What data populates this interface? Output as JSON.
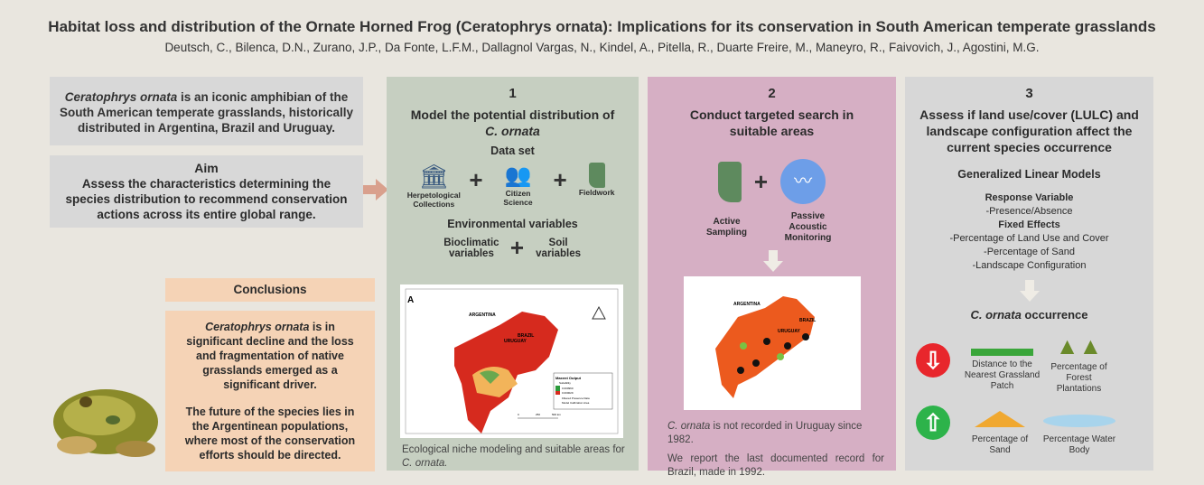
{
  "header": {
    "title": "Habitat loss and distribution of the Ornate Horned Frog (Ceratophrys ornata): Implications for its conservation in South American temperate grasslands",
    "authors": "Deutsch, C., Bilenca, D.N., Zurano, J.P., Da Fonte, L.F.M., Dallagnol Vargas, N., Kindel, A.,  Pitella, R., Duarte Freire, M., Maneyro, R., Faivovich, J., Agostini, M.G."
  },
  "intro": {
    "species": "Ceratophrys ornata",
    "text": " is an iconic amphibian of the South American temperate grasslands,  historically distributed in Argentina, Brazil and Uruguay."
  },
  "aim": {
    "heading": "Aim",
    "text": "Assess the characteristics determining the species distribution to recommend conservation actions across its entire global range."
  },
  "conclusions": {
    "heading": "Conclusions",
    "species": "Ceratophrys ornata",
    "p1": " is in significant decline and the loss and fragmentation of native grasslands emerged as a significant driver.",
    "p2": "The future of the species lies in the Argentinean populations, where most of the conservation efforts should be directed."
  },
  "panel1": {
    "number": "1",
    "title": "Model the potential distribution of",
    "title_species": "C. ornata",
    "dataset_heading": "Data set",
    "dataset": [
      "Herpetological Collections",
      "Citizen Science",
      "Fieldwork"
    ],
    "env_heading": "Environmental variables",
    "env": [
      "Bioclimatic variables",
      "Soil variables"
    ],
    "map": {
      "panel_letter": "A",
      "countries": [
        "ARGENTINA",
        "BRAZIL",
        "URUGUAY"
      ],
      "legend_title": "Maxent Output",
      "legend_sub": "Suitability",
      "legend_high": "0.000960",
      "legend_low": "0.000029",
      "legend_points": "Filtered Presence Data",
      "legend_area": "Model Calibration Area",
      "scale": [
        "0",
        "250",
        "500 km"
      ]
    },
    "caption": "Ecological niche modeling and suitable areas for",
    "caption_species": "C. ornata."
  },
  "panel2": {
    "number": "2",
    "title": "Conduct targeted search in suitable areas",
    "methods": [
      "Active Sampling",
      "Passive Acoustic Monitoring"
    ],
    "map": {
      "countries": [
        "ARGENTINA",
        "BRAZIL",
        "URUGUAY"
      ]
    },
    "caption_species": "C. ornata",
    "caption1": " is not recorded in Uruguay since 1982.",
    "caption2": "We report the last documented record for Brazil, made in 1992."
  },
  "panel3": {
    "number": "3",
    "title": "Assess if land use/cover (LULC) and landscape configuration affect the current species occurrence",
    "model": "Generalized Linear Models",
    "response_heading": "Response Variable",
    "response": "-Presence/Absence",
    "fixed_heading": "Fixed Effects",
    "fixed": [
      "-Percentage of Land Use and Cover",
      "-Percentage of Sand",
      "-Landscape Configuration"
    ],
    "outcome_species": "C. ornata",
    "outcome": " occurrence",
    "negative": [
      "Distance to the Nearest Grassland Patch",
      "Percentage of Forest Plantations"
    ],
    "positive": [
      "Percentage of Sand",
      "Percentage Water Body"
    ]
  },
  "colors": {
    "panel1": "#c6cfc1",
    "panel2": "#d6afc4",
    "panel3": "#d7d7d7",
    "conclusions": "#f5d3b6",
    "decrease": "#e8262c",
    "increase": "#2db34a"
  }
}
